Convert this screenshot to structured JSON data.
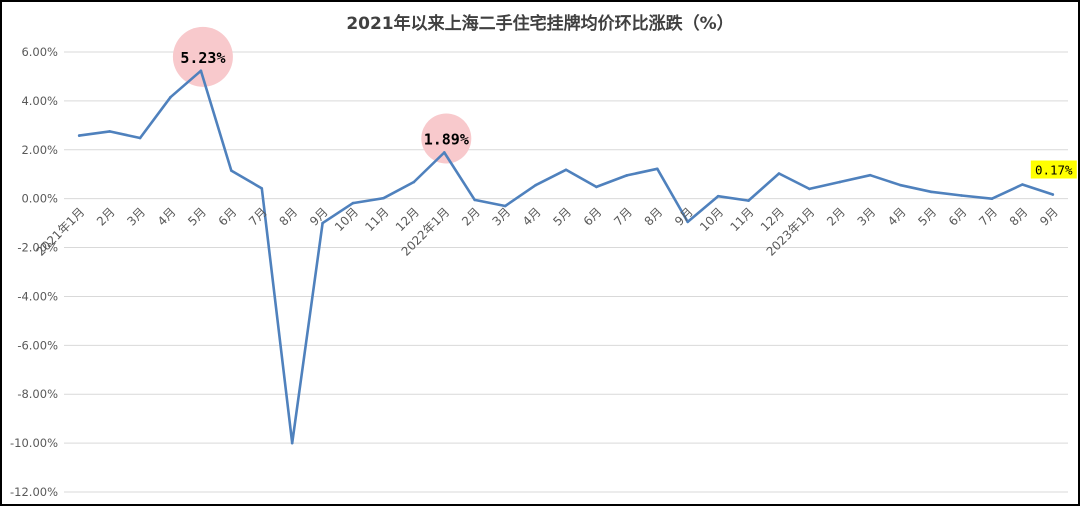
{
  "chart_data": {
    "type": "line",
    "title": "2021年以来上海二手住宅挂牌均价环比涨跌（%）",
    "xlabel": "",
    "ylabel": "",
    "categories": [
      "2021年1月",
      "2月",
      "3月",
      "4月",
      "5月",
      "6月",
      "7月",
      "8月",
      "9月",
      "10月",
      "11月",
      "12月",
      "2022年1月",
      "2月",
      "3月",
      "4月",
      "5月",
      "6月",
      "7月",
      "8月",
      "9月",
      "10月",
      "11月",
      "12月",
      "2023年1月",
      "2月",
      "3月",
      "4月",
      "5月",
      "6月",
      "7月",
      "8月",
      "9月"
    ],
    "series": [
      {
        "name": "",
        "values": [
          2.58,
          2.75,
          2.48,
          4.15,
          5.23,
          1.15,
          0.42,
          -10.0,
          -1.0,
          -0.18,
          0.02,
          0.68,
          1.89,
          -0.05,
          -0.3,
          0.55,
          1.18,
          0.48,
          0.95,
          1.22,
          -0.95,
          0.1,
          -0.08,
          1.03,
          0.4,
          0.68,
          0.96,
          0.55,
          0.28,
          0.13,
          0.0,
          0.58,
          0.17
        ]
      }
    ],
    "ylim": [
      -12,
      6
    ],
    "yticks": [
      6,
      4,
      2,
      0,
      -2,
      -4,
      -6,
      -8,
      -10,
      -12
    ],
    "ytick_labels": [
      "6.00%",
      "4.00%",
      "2.00%",
      "0.00%",
      "-2.00%",
      "-4.00%",
      "-6.00%",
      "-8.00%",
      "-10.00%",
      "-12.00%"
    ],
    "grid": true,
    "legend": "none",
    "line_color": "#4F81BD",
    "annotations": [
      {
        "index": 4,
        "text": "5.23%",
        "style": "circle",
        "color": "#F8C9CC"
      },
      {
        "index": 12,
        "text": "1.89%",
        "style": "circle",
        "color": "#F8C9CC"
      },
      {
        "index": 32,
        "text": "0.17%",
        "style": "box",
        "color": "#FFFF00"
      }
    ]
  }
}
